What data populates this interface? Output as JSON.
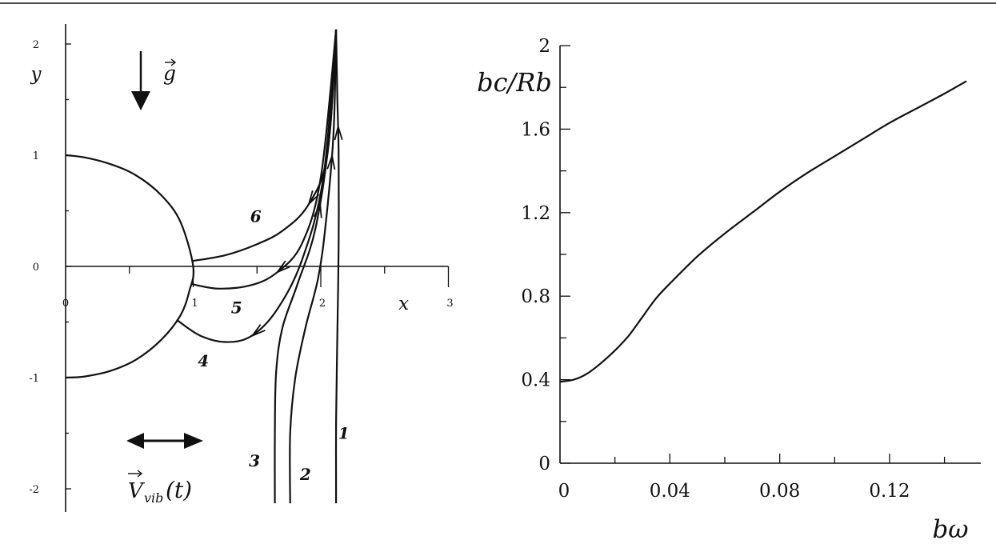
{
  "chart_data": [
    {
      "type": "line",
      "panel": "left",
      "xlabel": "x",
      "ylabel": "y",
      "xlim": [
        0,
        3
      ],
      "ylim": [
        -2,
        2
      ],
      "xticks": [
        {
          "v": 0,
          "label": "0"
        },
        {
          "v": 1,
          "label": "1"
        },
        {
          "v": 2,
          "label": "2"
        },
        {
          "v": 3,
          "label": "3"
        }
      ],
      "yticks": [
        {
          "v": -2,
          "label": "-2"
        },
        {
          "v": -1,
          "label": "-1"
        },
        {
          "v": 0,
          "label": "0"
        },
        {
          "v": 1,
          "label": "1"
        },
        {
          "v": 2,
          "label": "2"
        }
      ],
      "annotations": {
        "gravity": "g",
        "vibration": "V",
        "vibration_sub": "vib",
        "vibration_arg": "(t)"
      },
      "boundary": {
        "name": "sphere",
        "radius": 1,
        "x": [
          0,
          0.15,
          0.35,
          0.55,
          0.75,
          0.9,
          1.0,
          0.97,
          0.9,
          0.75,
          0.55,
          0.35,
          0.15,
          0
        ],
        "y": [
          1.0,
          0.98,
          0.92,
          0.82,
          0.64,
          0.4,
          0,
          -0.22,
          -0.44,
          -0.66,
          -0.84,
          -0.94,
          -0.99,
          -1.0
        ]
      },
      "series": [
        {
          "name": "1",
          "x": [
            2.12,
            2.13,
            2.14,
            2.14,
            2.13,
            2.12,
            2.12
          ],
          "y": [
            2.13,
            1.5,
            1.0,
            0.2,
            -0.6,
            -1.4,
            -2.13
          ]
        },
        {
          "name": "2",
          "x": [
            2.12,
            2.1,
            2.04,
            1.98,
            1.88,
            1.8,
            1.76,
            1.76
          ],
          "y": [
            2.13,
            1.2,
            0.4,
            -0.1,
            -0.55,
            -1.0,
            -1.5,
            -2.13
          ]
        },
        {
          "name": "3",
          "x": [
            2.12,
            2.07,
            1.96,
            1.82,
            1.7,
            1.65,
            1.64,
            1.64
          ],
          "y": [
            2.13,
            1.2,
            0.35,
            -0.15,
            -0.55,
            -0.95,
            -1.5,
            -2.13
          ]
        },
        {
          "name": "4",
          "x": [
            0.87,
            1.05,
            1.25,
            1.45,
            1.65,
            1.85,
            2.02,
            2.12
          ],
          "y": [
            -0.48,
            -0.62,
            -0.68,
            -0.63,
            -0.4,
            0.05,
            0.8,
            2.13
          ]
        },
        {
          "name": "5",
          "x": [
            0.99,
            1.2,
            1.45,
            1.65,
            1.85,
            2.0,
            2.12
          ],
          "y": [
            -0.16,
            -0.2,
            -0.17,
            -0.06,
            0.2,
            0.8,
            2.13
          ]
        },
        {
          "name": "6",
          "x": [
            1.0,
            1.25,
            1.5,
            1.7,
            1.9,
            2.05,
            2.12
          ],
          "y": [
            0.05,
            0.1,
            0.2,
            0.32,
            0.55,
            1.0,
            2.13
          ]
        }
      ]
    },
    {
      "type": "line",
      "panel": "right",
      "xlabel": "bω",
      "ylabel": "b_c/R_b",
      "xlim": [
        0,
        0.15
      ],
      "ylim": [
        0,
        2
      ],
      "xticks": [
        {
          "v": 0,
          "label": "0"
        },
        {
          "v": 0.04,
          "label": "0.04"
        },
        {
          "v": 0.08,
          "label": "0.08"
        },
        {
          "v": 0.12,
          "label": "0.12"
        }
      ],
      "yticks": [
        {
          "v": 0,
          "label": "0"
        },
        {
          "v": 0.4,
          "label": "0.4"
        },
        {
          "v": 0.8,
          "label": "0.8"
        },
        {
          "v": 1.2,
          "label": "1.2"
        },
        {
          "v": 1.6,
          "label": "1.6"
        },
        {
          "v": 2,
          "label": "2"
        }
      ],
      "series": [
        {
          "x": [
            0,
            0.005,
            0.01,
            0.015,
            0.02,
            0.025,
            0.03,
            0.035,
            0.04,
            0.05,
            0.06,
            0.07,
            0.08,
            0.09,
            0.1,
            0.11,
            0.12,
            0.13,
            0.14,
            0.148
          ],
          "y": [
            0.39,
            0.4,
            0.43,
            0.48,
            0.54,
            0.61,
            0.7,
            0.79,
            0.86,
            0.99,
            1.1,
            1.2,
            1.3,
            1.39,
            1.47,
            1.55,
            1.63,
            1.7,
            1.77,
            1.83
          ]
        }
      ]
    }
  ]
}
